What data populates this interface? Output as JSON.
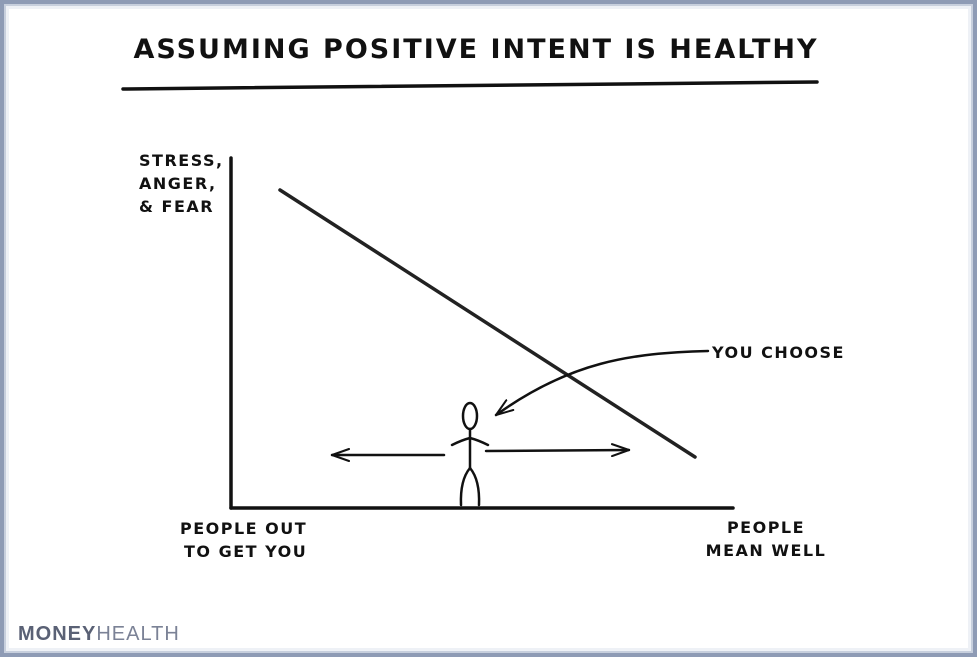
{
  "title": "ASSUMING POSITIVE INTENT IS HEALTHY",
  "y_axis_label": [
    "STRESS,",
    "ANGER,",
    "& FEAR"
  ],
  "x_axis_left_label": [
    "PEOPLE OUT",
    "TO GET YOU"
  ],
  "x_axis_right_label": [
    "PEOPLE",
    "MEAN WELL"
  ],
  "annotation": "YOU CHOOSE",
  "brand": {
    "part1": "MONEY",
    "part2": "HEALTH"
  },
  "colors": {
    "ink": "#111111",
    "frame": "#8e9bb5",
    "brand": "#5a6175"
  }
}
